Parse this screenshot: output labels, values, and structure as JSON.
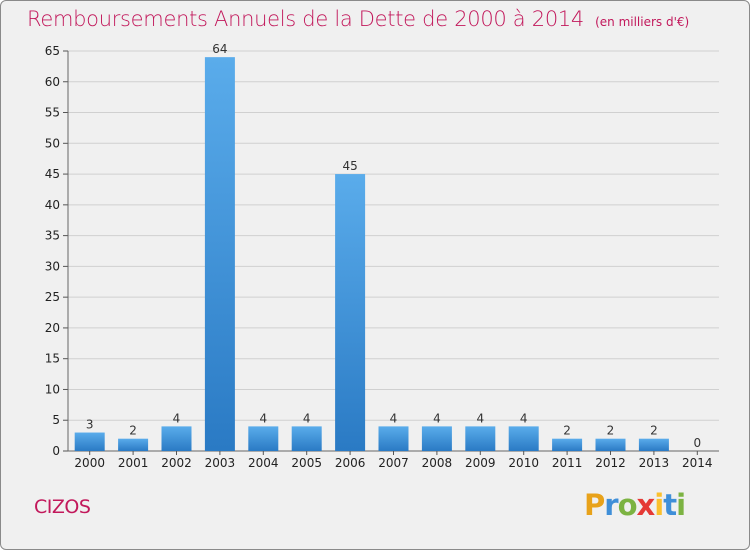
{
  "chart_data": {
    "type": "bar",
    "title": "Remboursements Annuels de la Dette de 2000 à 2014",
    "subtitle": "(en milliers d'€)",
    "categories": [
      "2000",
      "2001",
      "2002",
      "2003",
      "2004",
      "2005",
      "2006",
      "2007",
      "2008",
      "2009",
      "2010",
      "2011",
      "2012",
      "2013",
      "2014"
    ],
    "values": [
      3,
      2,
      4,
      64,
      4,
      4,
      45,
      4,
      4,
      4,
      4,
      2,
      2,
      2,
      0
    ],
    "ylim": [
      0,
      65
    ],
    "yticks": [
      0,
      5,
      10,
      15,
      20,
      25,
      30,
      35,
      40,
      45,
      50,
      55,
      60,
      65
    ],
    "xlabel": "",
    "ylabel": "",
    "grid": true,
    "bar_color": "#3a8fd6"
  },
  "commune": "CIZOS",
  "logo": {
    "letters": [
      "P",
      "r",
      "o",
      "x",
      "i",
      "t",
      "i"
    ],
    "colors": [
      "#e8a21a",
      "#3f8fd8",
      "#7cb342",
      "#e53935",
      "#fbc02d",
      "#3f8fd8",
      "#7cb342"
    ]
  }
}
